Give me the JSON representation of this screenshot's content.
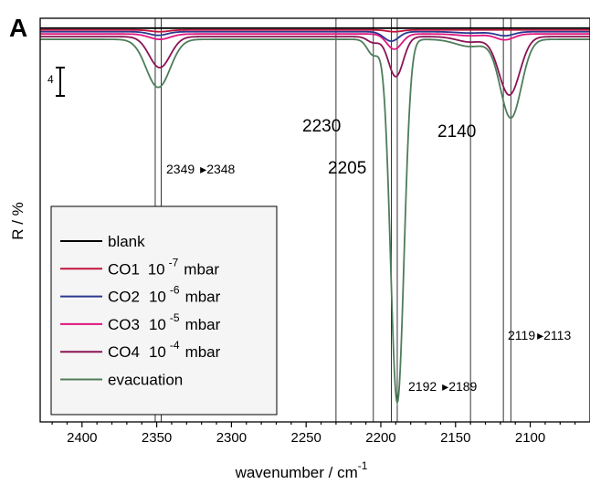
{
  "chart_data": {
    "type": "line",
    "panel_label": "A",
    "xlabel": "wavenumber / cm",
    "xlabel_sup": "-1",
    "ylabel": "R / %",
    "xlim": [
      2428,
      2060
    ],
    "x_reversed": true,
    "ylim": [
      -88,
      2
    ],
    "grid": false,
    "x_ticks": [
      2400,
      2350,
      2300,
      2250,
      2200,
      2150,
      2100
    ],
    "x_tick_labels": [
      "2400",
      "2350",
      "2300",
      "2250",
      "2200",
      "2150",
      "2100"
    ],
    "scale_bar": {
      "label": "4",
      "value": 4
    },
    "legend": {
      "position": "bottom-left",
      "entries": [
        {
          "main": "blank",
          "mid": "",
          "sup": "",
          "unit": ""
        },
        {
          "main": "CO1",
          "mid": "10",
          "sup": "-7",
          "unit": "mbar"
        },
        {
          "main": "CO2",
          "mid": "10",
          "sup": "-6",
          "unit": "mbar"
        },
        {
          "main": "CO3",
          "mid": "10",
          "sup": "-5",
          "unit": "mbar"
        },
        {
          "main": "CO4",
          "mid": "10",
          "sup": "-4",
          "unit": "mbar"
        },
        {
          "main": "evacuation",
          "mid": "",
          "sup": "",
          "unit": ""
        }
      ]
    },
    "series": [
      {
        "name": "blank",
        "color": "#000000",
        "baseline": -0.2,
        "peaks": []
      },
      {
        "name": "CO1",
        "color": "#c0133c",
        "baseline": -0.6,
        "peaks": [
          [
            2348,
            0.4,
            6
          ],
          [
            2191,
            0.4,
            5
          ]
        ]
      },
      {
        "name": "CO2",
        "color": "#2b3990",
        "baseline": -1.0,
        "peaks": [
          [
            2349,
            0.8,
            6
          ],
          [
            2193,
            2.1,
            5
          ],
          [
            2117,
            0.9,
            6
          ],
          [
            2140,
            0.3,
            9
          ]
        ]
      },
      {
        "name": "CO3",
        "color": "#e0157e",
        "baseline": -1.5,
        "peaks": [
          [
            2348,
            1.2,
            7
          ],
          [
            2191,
            3.4,
            5
          ],
          [
            2117,
            1.3,
            6
          ],
          [
            2140,
            0.4,
            9
          ]
        ]
      },
      {
        "name": "CO4",
        "color": "#8a1455",
        "baseline": -2.1,
        "peaks": [
          [
            2348,
            6.9,
            7
          ],
          [
            2190,
            8.9,
            5
          ],
          [
            2205,
            1.3,
            4
          ],
          [
            2140,
            1.2,
            9
          ],
          [
            2114,
            13.0,
            7
          ]
        ]
      },
      {
        "name": "evacuation",
        "color": "#4e7d5b",
        "baseline": -2.7,
        "peaks": [
          [
            2349,
            10.7,
            8
          ],
          [
            2189,
            81.0,
            4.5
          ],
          [
            2205,
            3.5,
            4
          ],
          [
            2140,
            1.6,
            10
          ],
          [
            2113,
            17.5,
            7
          ]
        ]
      }
    ],
    "annotations": {
      "lines": [
        2351,
        2347,
        2230,
        2205,
        2193,
        2189,
        2140,
        2118,
        2113
      ],
      "labels": [
        {
          "text": "2349",
          "arrow": "▸",
          "text2": "2348",
          "size": "small"
        },
        {
          "text": "2230",
          "size": "big"
        },
        {
          "text": "2205",
          "size": "big"
        },
        {
          "text": "2140",
          "size": "big"
        },
        {
          "text": "2192",
          "arrow": "▸",
          "text2": "2189",
          "size": "small"
        },
        {
          "text": "2119",
          "arrow": "▸",
          "text2": "2113",
          "size": "small"
        }
      ]
    }
  }
}
